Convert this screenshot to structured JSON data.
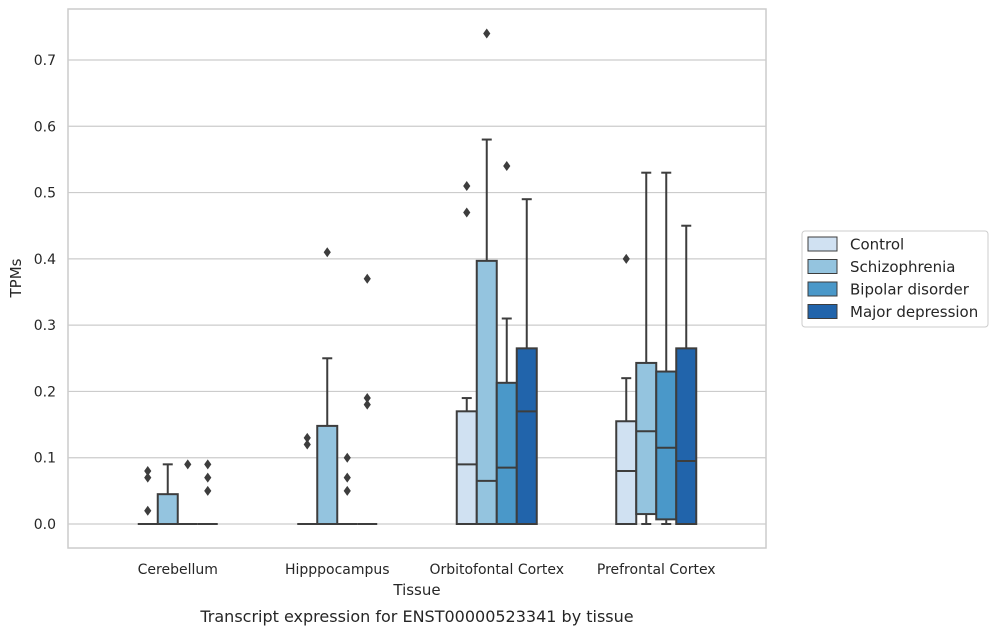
{
  "chart_data": {
    "type": "box",
    "title": "",
    "caption": "Transcript expression for ENST00000523341 by tissue",
    "xlabel": "Tissue",
    "ylabel": "TPMs",
    "ylim": [
      -0.035,
      0.775
    ],
    "yticks": [
      0.0,
      0.1,
      0.2,
      0.3,
      0.4,
      0.5,
      0.6,
      0.7
    ],
    "ytick_labels": [
      "0.0",
      "0.1",
      "0.2",
      "0.3",
      "0.4",
      "0.5",
      "0.6",
      "0.7"
    ],
    "grid": "horizontal",
    "legend_position": "right",
    "categories": [
      "Cerebellum",
      "Hipppocampus",
      "Orbitofontal Cortex",
      "Prefrontal Cortex"
    ],
    "series": [
      {
        "name": "Control",
        "color": "#d0e1f2",
        "boxes": [
          {
            "q1": 0.0,
            "median": 0.0,
            "q3": 0.0,
            "whisker_low": 0.0,
            "whisker_high": 0.0,
            "outliers": [
              0.08,
              0.07,
              0.02
            ]
          },
          {
            "q1": 0.0,
            "median": 0.0,
            "q3": 0.0,
            "whisker_low": 0.0,
            "whisker_high": 0.0,
            "outliers": [
              0.13,
              0.12
            ]
          },
          {
            "q1": 0.0,
            "median": 0.09,
            "q3": 0.17,
            "whisker_low": 0.0,
            "whisker_high": 0.19,
            "outliers": [
              0.51,
              0.47
            ]
          },
          {
            "q1": 0.0,
            "median": 0.08,
            "q3": 0.155,
            "whisker_low": 0.0,
            "whisker_high": 0.22,
            "outliers": [
              0.4
            ]
          }
        ]
      },
      {
        "name": "Schizophrenia",
        "color": "#94c4df",
        "boxes": [
          {
            "q1": 0.0,
            "median": 0.0,
            "q3": 0.045,
            "whisker_low": 0.0,
            "whisker_high": 0.09,
            "outliers": []
          },
          {
            "q1": 0.0,
            "median": 0.0,
            "q3": 0.148,
            "whisker_low": 0.0,
            "whisker_high": 0.25,
            "outliers": [
              0.41
            ]
          },
          {
            "q1": 0.0,
            "median": 0.065,
            "q3": 0.397,
            "whisker_low": 0.0,
            "whisker_high": 0.58,
            "outliers": [
              0.74
            ]
          },
          {
            "q1": 0.015,
            "median": 0.14,
            "q3": 0.243,
            "whisker_low": 0.0,
            "whisker_high": 0.53,
            "outliers": []
          }
        ]
      },
      {
        "name": "Bipolar disorder",
        "color": "#4a98c9",
        "boxes": [
          {
            "q1": 0.0,
            "median": 0.0,
            "q3": 0.0,
            "whisker_low": 0.0,
            "whisker_high": 0.0,
            "outliers": [
              0.09
            ]
          },
          {
            "q1": 0.0,
            "median": 0.0,
            "q3": 0.0,
            "whisker_low": 0.0,
            "whisker_high": 0.0,
            "outliers": [
              0.1,
              0.07,
              0.05
            ]
          },
          {
            "q1": 0.0,
            "median": 0.085,
            "q3": 0.213,
            "whisker_low": 0.0,
            "whisker_high": 0.31,
            "outliers": [
              0.54
            ]
          },
          {
            "q1": 0.007,
            "median": 0.115,
            "q3": 0.23,
            "whisker_low": 0.0,
            "whisker_high": 0.53,
            "outliers": []
          }
        ]
      },
      {
        "name": "Major depression",
        "color": "#2164ab",
        "boxes": [
          {
            "q1": 0.0,
            "median": 0.0,
            "q3": 0.0,
            "whisker_low": 0.0,
            "whisker_high": 0.0,
            "outliers": [
              0.09,
              0.07,
              0.05
            ]
          },
          {
            "q1": 0.0,
            "median": 0.0,
            "q3": 0.0,
            "whisker_low": 0.0,
            "whisker_high": 0.0,
            "outliers": [
              0.37,
              0.19,
              0.18
            ]
          },
          {
            "q1": 0.0,
            "median": 0.17,
            "q3": 0.265,
            "whisker_low": 0.0,
            "whisker_high": 0.49,
            "outliers": []
          },
          {
            "q1": 0.0,
            "median": 0.095,
            "q3": 0.265,
            "whisker_low": 0.0,
            "whisker_high": 0.45,
            "outliers": []
          }
        ]
      }
    ]
  }
}
